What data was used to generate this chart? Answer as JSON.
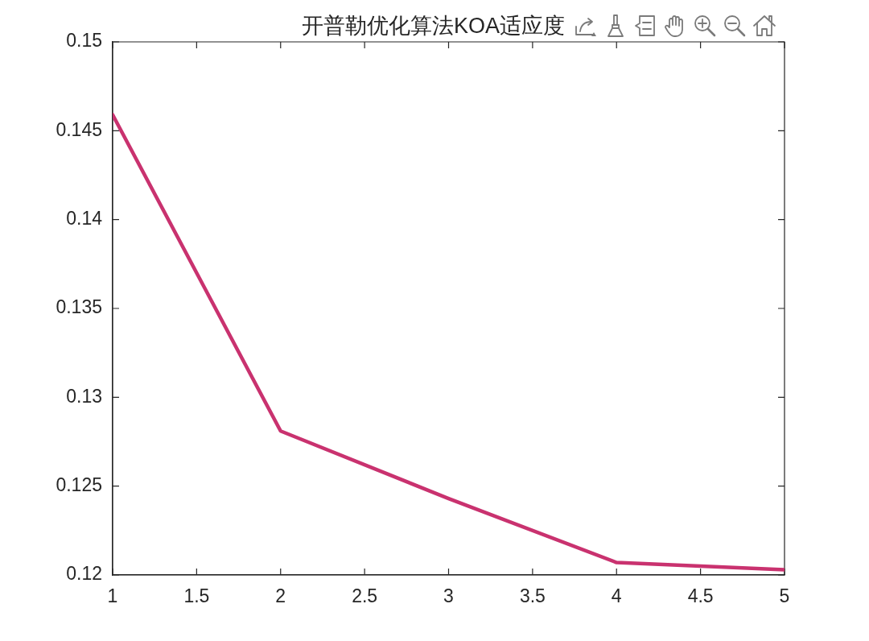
{
  "chart_data": {
    "type": "line",
    "title": "开普勒优化算法KOA适应度",
    "x": [
      1,
      2,
      3,
      4,
      5
    ],
    "series": [
      {
        "color": "#c9326f",
        "values": [
          0.1459,
          0.1281,
          0.1243,
          0.1207,
          0.1203
        ]
      }
    ],
    "xlim": [
      1,
      5
    ],
    "xticks": [
      1,
      1.5,
      2,
      2.5,
      3,
      3.5,
      4,
      4.5,
      5
    ],
    "ylim": [
      0.12,
      0.15
    ],
    "yticks": [
      0.12,
      0.125,
      0.13,
      0.135,
      0.14,
      0.145,
      0.15
    ],
    "grid": false,
    "legend": false,
    "marker": "none",
    "line_style": "solid"
  }
}
